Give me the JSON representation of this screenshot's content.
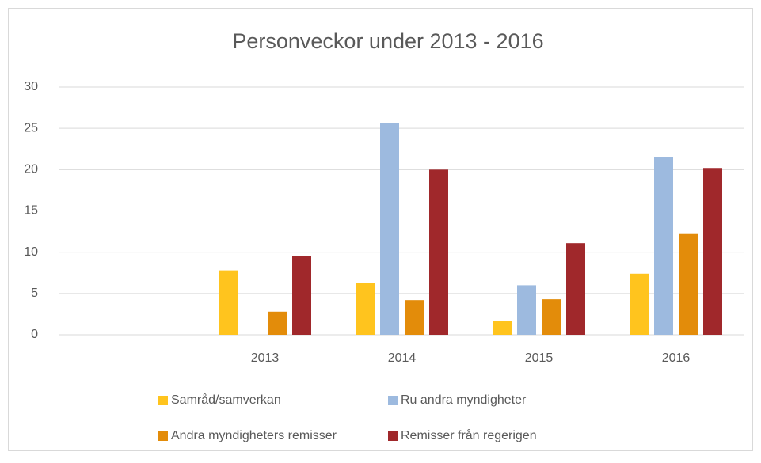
{
  "chart_data": {
    "type": "bar",
    "title": "Personveckor under 2013 - 2016",
    "categories": [
      null,
      "2013",
      "2014",
      "2015",
      "2016"
    ],
    "series": [
      {
        "name": "Samråd/samverkan",
        "color": "#ffc41e",
        "values": [
          null,
          7.8,
          6.3,
          1.7,
          7.4
        ]
      },
      {
        "name": "Ru andra myndigheter",
        "color": "#9dbadf",
        "values": [
          null,
          null,
          25.6,
          6.0,
          21.5
        ]
      },
      {
        "name": "Andra myndigheters remisser",
        "color": "#e38c0a",
        "values": [
          null,
          2.8,
          4.2,
          4.3,
          12.2
        ]
      },
      {
        "name": "Remisser från regerigen",
        "color": "#a0282b",
        "values": [
          null,
          9.5,
          20.0,
          11.1,
          20.2
        ]
      }
    ],
    "ylim": [
      0,
      30
    ],
    "yticks": [
      0,
      5,
      10,
      15,
      20,
      25,
      30
    ],
    "grid": true,
    "legend": "bottom"
  }
}
